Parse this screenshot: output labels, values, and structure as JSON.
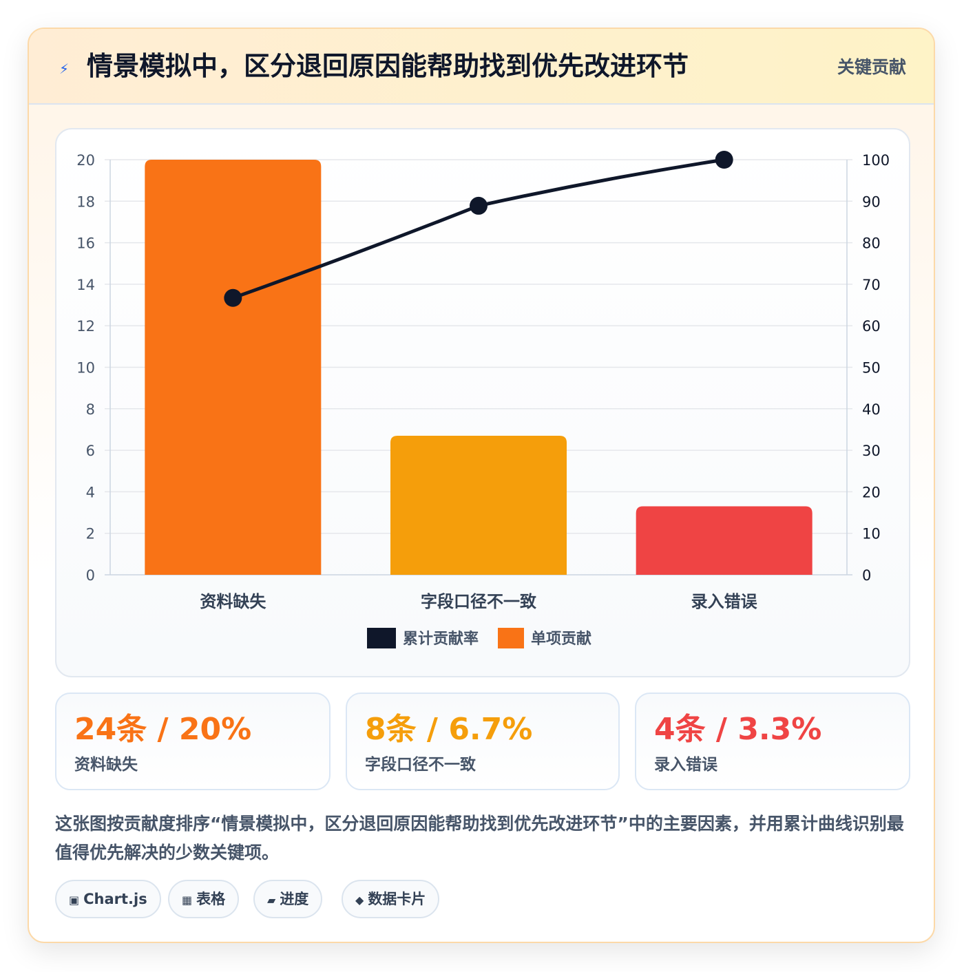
{
  "header": {
    "icon": "lightning-icon",
    "title": "情景模拟中，区分退回原因能帮助找到优先改进环节",
    "badge": "关键贡献"
  },
  "chart_data": {
    "type": "bar",
    "categories": [
      "资料缺失",
      "字段口径不一致",
      "录入错误"
    ],
    "series": [
      {
        "name": "单项贡献",
        "type": "bar",
        "values": [
          20,
          6.7,
          3.3
        ],
        "colors": [
          "#f97316",
          "#f59e0b",
          "#ef4444"
        ],
        "axis": "left"
      },
      {
        "name": "累计贡献率",
        "type": "line",
        "values": [
          66.7,
          88.9,
          100
        ],
        "color": "#0f172a",
        "axis": "right"
      }
    ],
    "y_left": {
      "ylim": [
        0,
        20
      ],
      "ticks": [
        "0",
        "2",
        "4",
        "6",
        "8",
        "10",
        "12",
        "14",
        "16",
        "18",
        "20"
      ]
    },
    "y_right": {
      "ylim": [
        0,
        100
      ],
      "ticks": [
        "0",
        "10",
        "20",
        "30",
        "40",
        "50",
        "60",
        "70",
        "80",
        "90",
        "100"
      ]
    },
    "grid": true,
    "legend": {
      "placement": "bottom",
      "entries": [
        "累计贡献率",
        "单项贡献"
      ]
    }
  },
  "stats": [
    {
      "value": "24条 / 20%",
      "label": "资料缺失",
      "color": "#f97316"
    },
    {
      "value": "8条 / 6.7%",
      "label": "字段口径不一致",
      "color": "#f59e0b"
    },
    {
      "value": "4条 / 3.3%",
      "label": "录入错误",
      "color": "#ef4444"
    }
  ],
  "description": "这张图按贡献度排序“情景模拟中，区分退回原因能帮助找到优先改进环节”中的主要因素，并用累计曲线识别最值得优先解决的少数关键项。",
  "chips": [
    {
      "icon": "▣",
      "label": "Chart.js"
    },
    {
      "icon": "▦",
      "label": "表格"
    },
    {
      "icon": "▰",
      "label": "进度"
    },
    {
      "icon": "◆",
      "label": "数据卡片"
    }
  ]
}
